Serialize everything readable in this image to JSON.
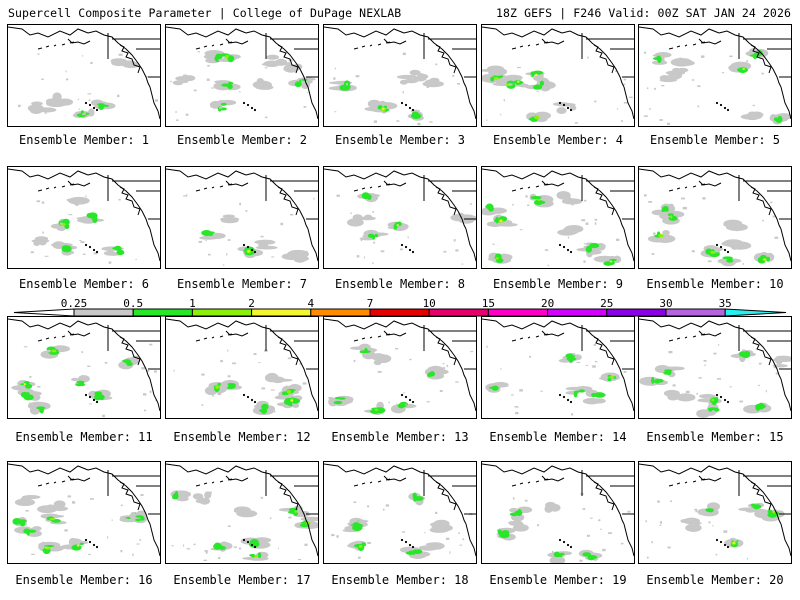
{
  "header": {
    "title": "Supercell Composite Parameter | College of DuPage NEXLAB",
    "run_info": "18Z GEFS | F246 Valid: 00Z SAT JAN 24 2026"
  },
  "panels": [
    {
      "member": 1,
      "label": "Ensemble Member: 1"
    },
    {
      "member": 2,
      "label": "Ensemble Member: 2"
    },
    {
      "member": 3,
      "label": "Ensemble Member: 3"
    },
    {
      "member": 4,
      "label": "Ensemble Member: 4"
    },
    {
      "member": 5,
      "label": "Ensemble Member: 5"
    },
    {
      "member": 6,
      "label": "Ensemble Member: 6"
    },
    {
      "member": 7,
      "label": "Ensemble Member: 7"
    },
    {
      "member": 8,
      "label": "Ensemble Member: 8"
    },
    {
      "member": 9,
      "label": "Ensemble Member: 9"
    },
    {
      "member": 10,
      "label": "Ensemble Member: 10"
    },
    {
      "member": 11,
      "label": "Ensemble Member: 11"
    },
    {
      "member": 12,
      "label": "Ensemble Member: 12"
    },
    {
      "member": 13,
      "label": "Ensemble Member: 13"
    },
    {
      "member": 14,
      "label": "Ensemble Member: 14"
    },
    {
      "member": 15,
      "label": "Ensemble Member: 15"
    },
    {
      "member": 16,
      "label": "Ensemble Member: 16"
    },
    {
      "member": 17,
      "label": "Ensemble Member: 17"
    },
    {
      "member": 18,
      "label": "Ensemble Member: 18"
    },
    {
      "member": 19,
      "label": "Ensemble Member: 19"
    },
    {
      "member": 20,
      "label": "Ensemble Member: 20"
    }
  ],
  "colorbar": {
    "thresholds": [
      "0.25",
      "0.5",
      "1",
      "2",
      "4",
      "7",
      "10",
      "15",
      "20",
      "25",
      "30",
      "35"
    ],
    "colors": [
      "#c8c8c8",
      "#28e628",
      "#8cf00a",
      "#f5f532",
      "#ff8c00",
      "#e60000",
      "#e6006e",
      "#ff00c8",
      "#d200ff",
      "#8c00e6",
      "#b464dc",
      "#28f0f0"
    ]
  }
}
